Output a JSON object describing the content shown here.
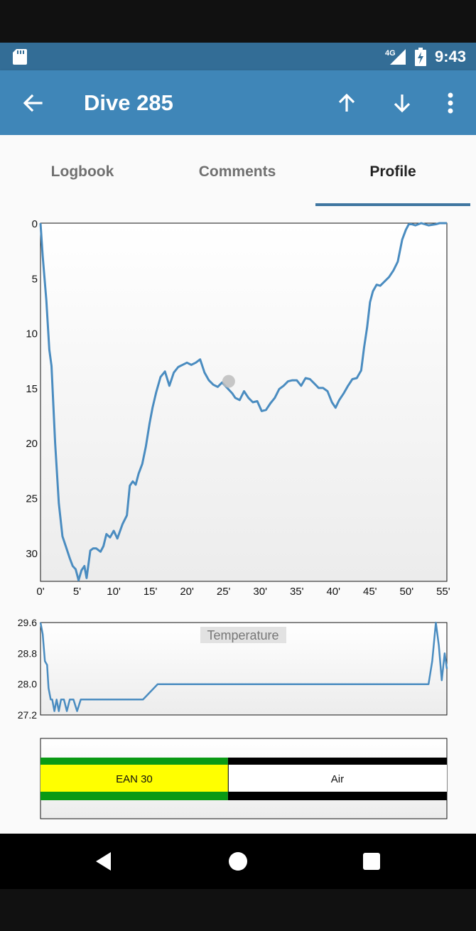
{
  "status_bar": {
    "time": "9:43",
    "network": "4G",
    "icons": [
      "sd-card-icon",
      "cell-signal-icon",
      "battery-charging-icon"
    ]
  },
  "app_bar": {
    "title": "Dive 285",
    "icons": [
      "arrow-back-icon",
      "arrow-up-icon",
      "arrow-down-icon",
      "more-vert-icon"
    ]
  },
  "tabs": [
    {
      "label": "Logbook",
      "active": false
    },
    {
      "label": "Comments",
      "active": false
    },
    {
      "label": "Profile",
      "active": true
    }
  ],
  "colors": {
    "status_bar": "#336d96",
    "app_bar": "#3f86b8",
    "line": "#4a8cc0",
    "tank_green": "#0a9a14",
    "tank_yellow": "#ffff00",
    "tab_indicator": "#3f76a0"
  },
  "chart_data": [
    {
      "type": "line",
      "title": "",
      "xlabel": "",
      "ylabel": "",
      "y_inverted": true,
      "xlim": [
        0,
        55.5
      ],
      "ylim": [
        0,
        32.6
      ],
      "x_ticks": [
        "0'",
        "5'",
        "10'",
        "15'",
        "20'",
        "25'",
        "30'",
        "35'",
        "40'",
        "45'",
        "50'",
        "55'"
      ],
      "y_ticks": [
        "0",
        "5",
        "10",
        "15",
        "20",
        "25",
        "30"
      ],
      "y_tick_values": [
        0,
        5,
        10,
        15,
        20,
        25,
        30
      ],
      "grid": false,
      "marker": {
        "x": 25.7,
        "y": 14.4
      },
      "series": [
        {
          "x": [
            0,
            0.3,
            0.8,
            1.2,
            1.5,
            2.0,
            2.5,
            3.0,
            3.5,
            4.0,
            4.4,
            4.8,
            5.2,
            5.6,
            6.0,
            6.3,
            6.8,
            7.2,
            7.6,
            8.2,
            8.6,
            9.0,
            9.5,
            10.0,
            10.5,
            11.2,
            11.8,
            12.2,
            12.6,
            13.0,
            13.4,
            13.9,
            14.4,
            14.9,
            15.3,
            15.8,
            16.4,
            17.0,
            17.6,
            18.2,
            18.8,
            19.4,
            20.0,
            20.6,
            21.2,
            21.8,
            22.4,
            23.0,
            23.6,
            24.2,
            24.8,
            25.5,
            26.2,
            26.6,
            27.2,
            27.8,
            28.4,
            29.0,
            29.6,
            30.2,
            30.8,
            31.4,
            32.0,
            32.6,
            33.2,
            33.8,
            34.4,
            35.0,
            35.6,
            36.2,
            36.8,
            37.4,
            38.0,
            38.6,
            39.2,
            39.8,
            40.3,
            40.8,
            41.4,
            42.0,
            42.6,
            43.2,
            43.8,
            44.2,
            44.6,
            45.0,
            45.4,
            45.9,
            46.4,
            47.0,
            47.6,
            48.2,
            48.8,
            49.4,
            49.9,
            50.3,
            50.7,
            51.2,
            52.0,
            53.0,
            54.0,
            54.5,
            55.5
          ],
          "y": [
            0,
            3,
            7,
            11.5,
            13,
            20,
            25.5,
            28.5,
            29.5,
            30.5,
            31.2,
            31.5,
            32.5,
            31.6,
            31.2,
            32.3,
            29.8,
            29.6,
            29.6,
            29.9,
            29.4,
            28.3,
            28.6,
            28.0,
            28.7,
            27.4,
            26.6,
            23.9,
            23.5,
            23.8,
            22.8,
            21.9,
            20.3,
            18.2,
            16.8,
            15.4,
            14.0,
            13.5,
            14.8,
            13.6,
            13.1,
            12.9,
            12.7,
            12.9,
            12.7,
            12.4,
            13.6,
            14.3,
            14.7,
            14.9,
            14.5,
            15.0,
            15.5,
            15.9,
            16.1,
            15.3,
            15.9,
            16.3,
            16.2,
            17.1,
            17.0,
            16.4,
            15.9,
            15.1,
            14.8,
            14.4,
            14.3,
            14.3,
            14.8,
            14.1,
            14.2,
            14.6,
            15.0,
            15.0,
            15.3,
            16.3,
            16.8,
            16.1,
            15.5,
            14.8,
            14.2,
            14.1,
            13.4,
            11.3,
            9.5,
            7.2,
            6.2,
            5.6,
            5.7,
            5.3,
            4.9,
            4.3,
            3.5,
            1.5,
            0.6,
            0.1,
            0.1,
            0.2,
            0.0,
            0.2,
            0.1,
            0.0,
            0.0
          ]
        }
      ]
    },
    {
      "type": "line",
      "title": "Temperature",
      "xlabel": "",
      "ylabel": "",
      "xlim": [
        0,
        55.5
      ],
      "ylim": [
        27.2,
        29.6
      ],
      "y_ticks": [
        "29.6",
        "28.8",
        "28.0",
        "27.2"
      ],
      "y_tick_values": [
        29.6,
        28.8,
        28.0,
        27.2
      ],
      "grid": false,
      "series": [
        {
          "x": [
            0,
            0.3,
            0.6,
            0.9,
            1.1,
            1.4,
            1.6,
            1.9,
            2.2,
            2.5,
            2.8,
            3.2,
            3.6,
            4.0,
            4.5,
            5.0,
            5.5,
            6.0,
            6.5,
            7.0,
            7.5,
            8.0,
            9.0,
            10.0,
            11.0,
            12.0,
            13.0,
            14.0,
            15.0,
            16.0,
            17.0,
            18.0,
            19.0,
            20.0,
            21.0,
            22.0,
            23.0,
            24.0,
            25.0,
            26.0,
            27.0,
            28.0,
            29.0,
            30.0,
            31.0,
            32.0,
            33.0,
            34.0,
            35.0,
            36.0,
            37.0,
            38.0,
            39.0,
            40.0,
            41.0,
            42.0,
            43.0,
            44.0,
            45.0,
            46.0,
            47.0,
            48.0,
            49.0,
            50.0,
            51.0,
            52.0,
            53.0,
            53.5,
            54.0,
            54.4,
            54.8,
            55.2,
            55.5
          ],
          "y": [
            29.6,
            29.3,
            28.6,
            28.5,
            27.9,
            27.6,
            27.6,
            27.3,
            27.6,
            27.3,
            27.6,
            27.6,
            27.3,
            27.6,
            27.6,
            27.3,
            27.6,
            27.6,
            27.6,
            27.6,
            27.6,
            27.6,
            27.6,
            27.6,
            27.6,
            27.6,
            27.6,
            27.6,
            27.8,
            28.0,
            28.0,
            28.0,
            28.0,
            28.0,
            28.0,
            28.0,
            28.0,
            28.0,
            28.0,
            28.0,
            28.0,
            28.0,
            28.0,
            28.0,
            28.0,
            28.0,
            28.0,
            28.0,
            28.0,
            28.0,
            28.0,
            28.0,
            28.0,
            28.0,
            28.0,
            28.0,
            28.0,
            28.0,
            28.0,
            28.0,
            28.0,
            28.0,
            28.0,
            28.0,
            28.0,
            28.0,
            28.0,
            28.6,
            29.6,
            29.0,
            28.1,
            28.8,
            28.4
          ]
        }
      ]
    },
    {
      "type": "table",
      "title": "",
      "tanks": [
        {
          "label": "EAN 30",
          "start": 0,
          "end": 25.6
        },
        {
          "label": "Air",
          "start": 25.6,
          "end": 55.5
        }
      ]
    }
  ],
  "nav_bar": {
    "icons": [
      "back-triangle-icon",
      "home-circle-icon",
      "recents-square-icon"
    ]
  }
}
